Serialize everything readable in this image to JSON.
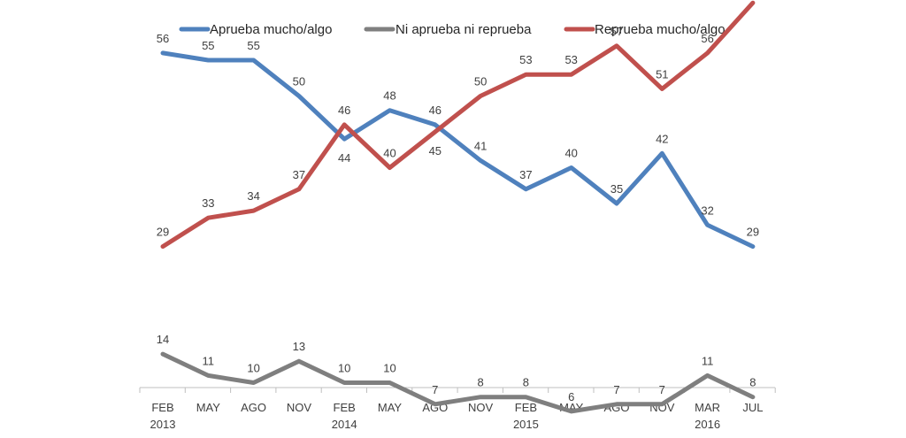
{
  "chart_data": {
    "type": "line",
    "title": "",
    "xlabel": "",
    "ylabel": "",
    "ylim": [
      0,
      70
    ],
    "grid": false,
    "legend_position": "top",
    "categories": [
      [
        "FEB",
        "2013"
      ],
      [
        "MAY",
        ""
      ],
      [
        "AGO",
        ""
      ],
      [
        "NOV",
        ""
      ],
      [
        "FEB",
        "2014"
      ],
      [
        "MAY",
        ""
      ],
      [
        "AGO",
        ""
      ],
      [
        "NOV",
        ""
      ],
      [
        "FEB",
        "2015"
      ],
      [
        "MAY",
        ""
      ],
      [
        "AGO",
        ""
      ],
      [
        "NOV",
        ""
      ],
      [
        "MAR",
        "2016"
      ],
      [
        "JUL",
        ""
      ]
    ],
    "series": [
      {
        "name": "Aprueba mucho/algo",
        "color": "#4F81BD",
        "values": [
          56,
          55,
          55,
          50,
          44,
          48,
          46,
          41,
          37,
          40,
          35,
          42,
          32,
          29
        ],
        "label_pos": [
          "above",
          "above",
          "above",
          "above",
          "below",
          "above",
          "above",
          "above",
          "above",
          "above",
          "above",
          "above",
          "above",
          "above"
        ]
      },
      {
        "name": "Ni aprueba ni reprueba",
        "color": "#7F7F7F",
        "values": [
          14,
          11,
          10,
          13,
          10,
          10,
          7,
          8,
          8,
          6,
          7,
          7,
          11,
          8
        ],
        "label_pos": [
          "above",
          "above",
          "above",
          "above",
          "above",
          "above",
          "above",
          "above",
          "above",
          "above",
          "above",
          "above",
          "above",
          "above"
        ]
      },
      {
        "name": "Reprueba mucho/algo",
        "color": "#C0504D",
        "values": [
          29,
          33,
          34,
          37,
          46,
          40,
          45,
          50,
          53,
          53,
          57,
          51,
          56,
          63
        ],
        "label_pos": [
          "above",
          "above",
          "above",
          "above",
          "above",
          "above",
          "below",
          "above",
          "above",
          "above",
          "above",
          "above",
          "above",
          "above"
        ]
      }
    ]
  }
}
